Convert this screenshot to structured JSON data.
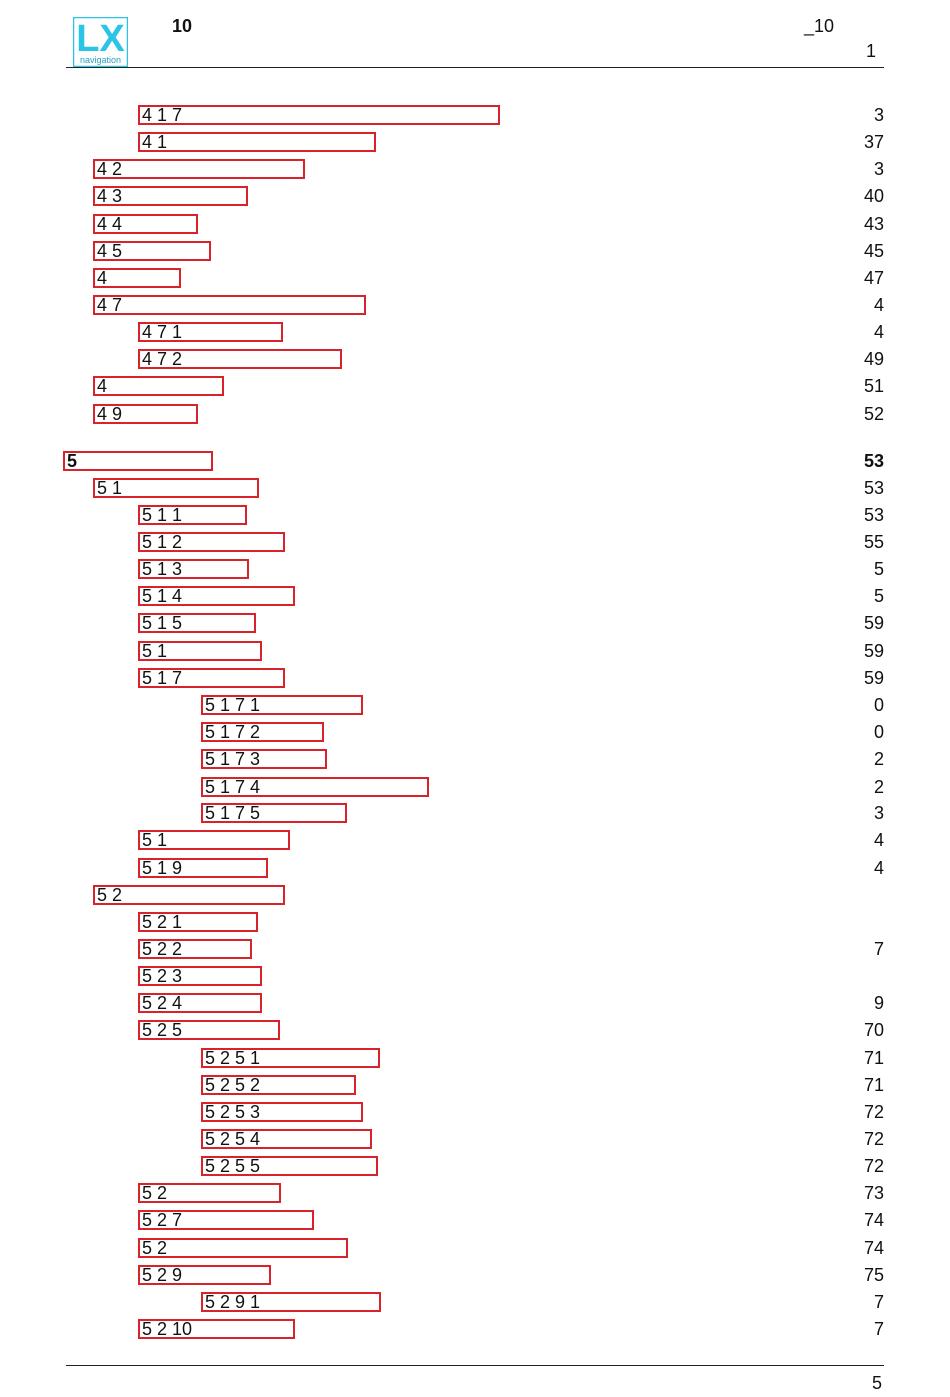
{
  "header": {
    "logo_text": "LX",
    "logo_sub": "navigation",
    "title": "10",
    "right": "_10",
    "page": "1"
  },
  "toc": [
    {
      "label": "4 1 7",
      "page": "3",
      "level": 3
    },
    {
      "label": "4 1",
      "page": "37",
      "level": 3
    },
    {
      "label": "4 2",
      "page": "3",
      "level": 2
    },
    {
      "label": "4 3",
      "page": "40",
      "level": 2
    },
    {
      "label": "4 4",
      "page": "43",
      "level": 2
    },
    {
      "label": "4 5",
      "page": "45",
      "level": 2
    },
    {
      "label": "4",
      "page": "47",
      "level": 2
    },
    {
      "label": "4 7",
      "page": "4",
      "level": 2
    },
    {
      "label": "4 7 1",
      "page": "4",
      "level": 3
    },
    {
      "label": "4 7 2",
      "page": "49",
      "level": 3
    },
    {
      "label": "4",
      "page": "51",
      "level": 2
    },
    {
      "label": "4 9",
      "page": "52",
      "level": 2
    },
    {
      "label": "5",
      "page": "53",
      "level": 1,
      "bold": true
    },
    {
      "label": "5 1",
      "page": "53",
      "level": 2
    },
    {
      "label": "5 1 1",
      "page": "53",
      "level": 3
    },
    {
      "label": "5 1 2",
      "page": "55",
      "level": 3
    },
    {
      "label": "5 1 3",
      "page": "5",
      "level": 3
    },
    {
      "label": "5 1 4",
      "page": "5",
      "level": 3
    },
    {
      "label": "5 1 5",
      "page": "59",
      "level": 3
    },
    {
      "label": "5 1",
      "page": "59",
      "level": 3
    },
    {
      "label": "5 1 7",
      "page": "59",
      "level": 3
    },
    {
      "label": "5 1 7 1",
      "page": "0",
      "level": 4
    },
    {
      "label": "5 1 7 2",
      "page": "0",
      "level": 4
    },
    {
      "label": "5 1 7 3",
      "page": "2",
      "level": 4
    },
    {
      "label": "5 1 7 4",
      "page": "2",
      "level": 4
    },
    {
      "label": "5 1 7 5",
      "page": "3",
      "level": 4
    },
    {
      "label": "5 1",
      "page": "4",
      "level": 3
    },
    {
      "label": "5 1 9",
      "page": "4",
      "level": 3
    },
    {
      "label": "5 2",
      "page": "",
      "level": 2
    },
    {
      "label": "5 2 1",
      "page": "",
      "level": 3
    },
    {
      "label": "5 2 2",
      "page": "7",
      "level": 3
    },
    {
      "label": "5 2 3",
      "page": "",
      "level": 3
    },
    {
      "label": "5 2 4",
      "page": "9",
      "level": 3
    },
    {
      "label": "5 2 5",
      "page": "70",
      "level": 3
    },
    {
      "label": "5 2 5 1",
      "page": "71",
      "level": 4
    },
    {
      "label": "5 2 5 2",
      "page": "71",
      "level": 4
    },
    {
      "label": "5 2 5 3",
      "page": "72",
      "level": 4
    },
    {
      "label": "5 2 5 4",
      "page": "72",
      "level": 4
    },
    {
      "label": "5 2 5 5",
      "page": "72",
      "level": 4
    },
    {
      "label": "5 2",
      "page": "73",
      "level": 3
    },
    {
      "label": "5 2 7",
      "page": "74",
      "level": 3
    },
    {
      "label": "5 2",
      "page": "74",
      "level": 3
    },
    {
      "label": "5 2 9",
      "page": "75",
      "level": 3
    },
    {
      "label": "5 2 9 1",
      "page": "7",
      "level": 4
    },
    {
      "label": "5 2 10",
      "page": "7",
      "level": 3
    }
  ],
  "footer": {
    "page": "5"
  },
  "colors": {
    "box_border": "#d9232a",
    "logo_cyan": "#29c4e6"
  }
}
